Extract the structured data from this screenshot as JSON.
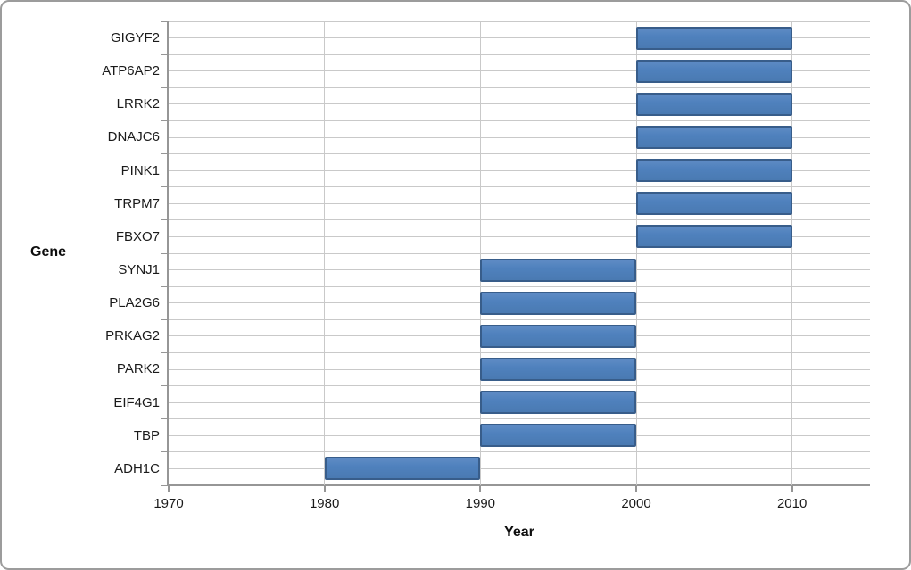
{
  "frame": {
    "background": "#ffffff",
    "border_color": "#9c9c9c"
  },
  "chart_data": {
    "type": "bar",
    "orientation": "horizontal",
    "title": "",
    "xlabel": "Year",
    "ylabel": "Gene",
    "xlim": [
      1970,
      2015
    ],
    "x_ticks": [
      1970,
      1980,
      1990,
      2000,
      2010
    ],
    "grid": true,
    "legend": "none",
    "categories": [
      "GIGYF2",
      "ATP6AP2",
      "LRRK2",
      "DNAJC6",
      "PINK1",
      "TRPM7",
      "FBXO7",
      "SYNJ1",
      "PLA2G6",
      "PRKAG2",
      "PARK2",
      "EIF4G1",
      "TBP",
      "ADH1C"
    ],
    "bars": [
      {
        "label": "GIGYF2",
        "start": 2000,
        "end": 2010
      },
      {
        "label": "ATP6AP2",
        "start": 2000,
        "end": 2010
      },
      {
        "label": "LRRK2",
        "start": 2000,
        "end": 2010
      },
      {
        "label": "DNAJC6",
        "start": 2000,
        "end": 2010
      },
      {
        "label": "PINK1",
        "start": 2000,
        "end": 2010
      },
      {
        "label": "TRPM7",
        "start": 2000,
        "end": 2010
      },
      {
        "label": "FBXO7",
        "start": 2000,
        "end": 2010
      },
      {
        "label": "SYNJ1",
        "start": 1990,
        "end": 2000
      },
      {
        "label": "PLA2G6",
        "start": 1990,
        "end": 2000
      },
      {
        "label": "PRKAG2",
        "start": 1990,
        "end": 2000
      },
      {
        "label": "PARK2",
        "start": 1990,
        "end": 2000
      },
      {
        "label": "EIF4G1",
        "start": 1990,
        "end": 2000
      },
      {
        "label": "TBP",
        "start": 1990,
        "end": 2000
      },
      {
        "label": "ADH1C",
        "start": 1980,
        "end": 1990
      }
    ],
    "colors": {
      "bar_fill": "#4F81BD",
      "bar_border": "#385D8A",
      "gridline": "#C9C9C9",
      "axis": "#969696",
      "text": "#1A1A1A"
    }
  }
}
